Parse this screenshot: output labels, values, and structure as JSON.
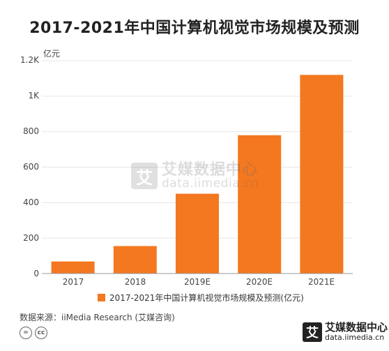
{
  "title": "2017-2021年中国计算机视觉市场规模及预测",
  "unit_label": "亿元",
  "y_tick_labels": [
    "0",
    "200",
    "400",
    "600",
    "800",
    "1K",
    "1.2K"
  ],
  "legend_label": "2017-2021年中国计算机视觉市场规模及预测(亿元)",
  "source_text": "数据来源：iiMedia Research (艾媒咨询)",
  "license_icons": [
    "cc-equal-icon",
    "cc-icon"
  ],
  "watermark": {
    "mark": "艾",
    "cn": "艾媒数据中心",
    "en": "data.iimedia.cn"
  },
  "logo": {
    "mark": "艾",
    "cn": "艾媒数据中心",
    "en": "data.iimedia.cn"
  },
  "colors": {
    "bar": "#f47820",
    "grid": "#e6e6e6",
    "axis": "#999999"
  },
  "chart_data": {
    "type": "bar",
    "categories": [
      "2017",
      "2018",
      "2019E",
      "2020E",
      "2021E"
    ],
    "series": [
      {
        "name": "2017-2021年中国计算机视觉市场规模及预测(亿元)",
        "values": [
          68,
          155,
          450,
          780,
          1120
        ]
      }
    ],
    "ylabel": "亿元",
    "ylim": [
      0,
      1200
    ],
    "yticks": [
      0,
      200,
      400,
      600,
      800,
      1000,
      1200
    ],
    "grid": true,
    "legend": "bottom"
  }
}
